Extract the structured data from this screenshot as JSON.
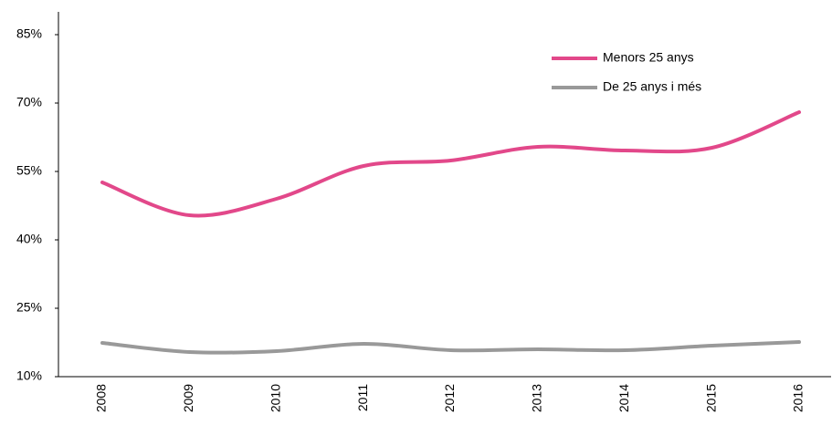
{
  "chart_data": {
    "type": "line",
    "categories": [
      "2008",
      "2009",
      "2010",
      "2011",
      "2012",
      "2013",
      "2014",
      "2015",
      "2016"
    ],
    "series": [
      {
        "name": "Menors 25 anys",
        "color": "#e2488a",
        "values": [
          52.6,
          45.4,
          49,
          56.2,
          57.4,
          60.4,
          59.6,
          60.2,
          68
        ]
      },
      {
        "name": "De 25 anys i més",
        "color": "#999999",
        "values": [
          17.4,
          15.4,
          15.6,
          17.2,
          15.8,
          16,
          15.8,
          16.8,
          17.6
        ]
      }
    ],
    "ylim": [
      10,
      90
    ],
    "yticks": [
      {
        "value": 10,
        "label": "10%"
      },
      {
        "value": 25,
        "label": "25%"
      },
      {
        "value": 40,
        "label": "40%"
      },
      {
        "value": 55,
        "label": "55%"
      },
      {
        "value": 70,
        "label": "70%"
      },
      {
        "value": 85,
        "label": "85%"
      }
    ],
    "legend": "upper right"
  }
}
